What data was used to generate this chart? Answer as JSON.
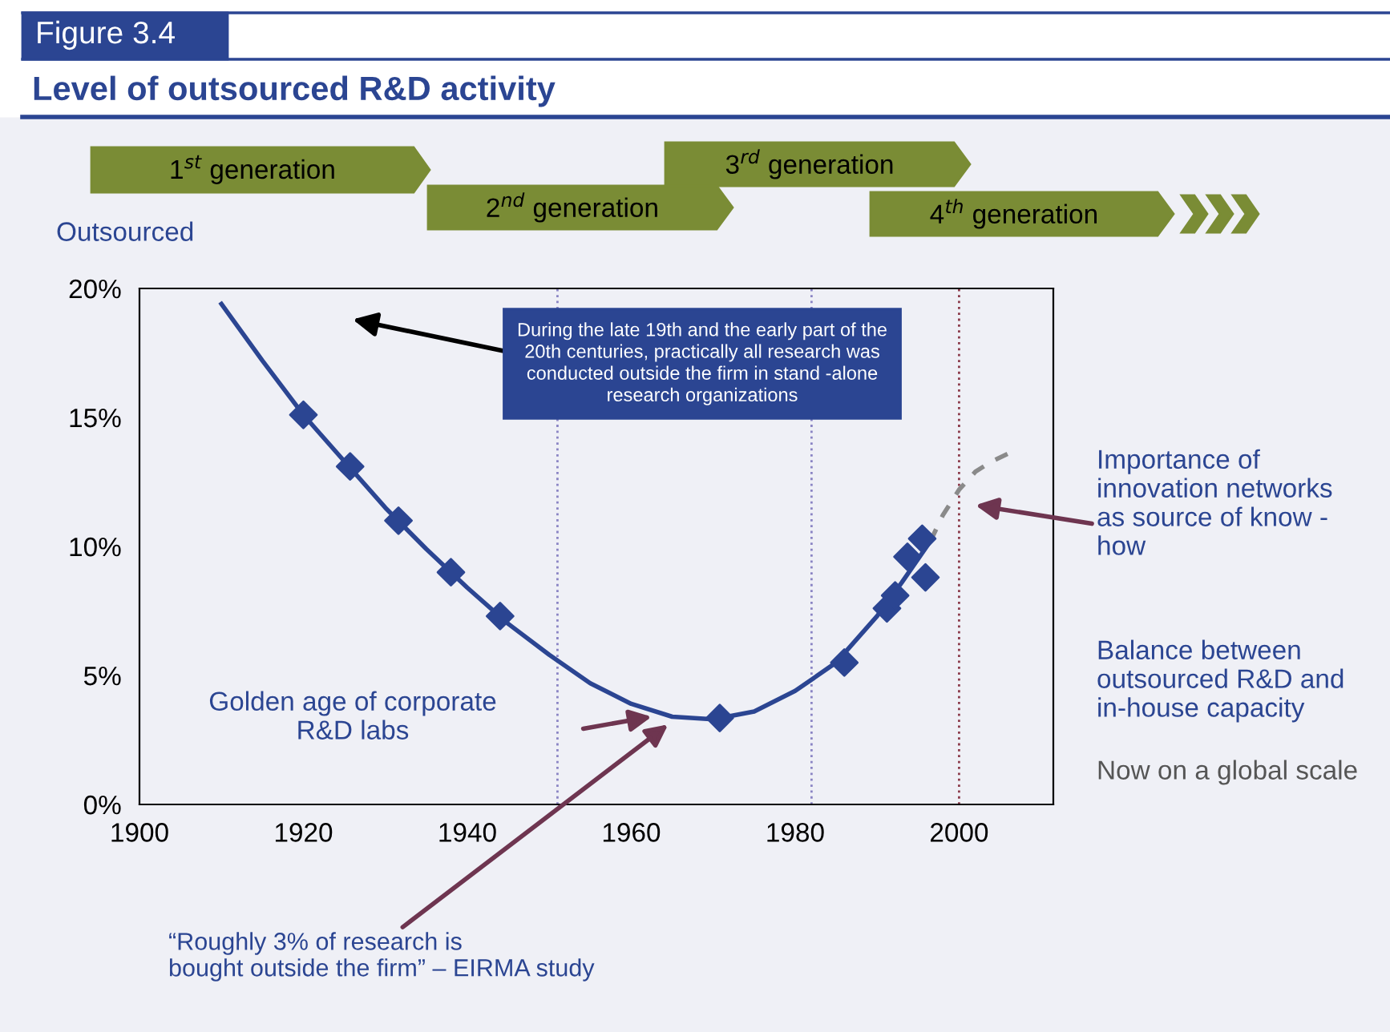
{
  "chart_data": {
    "type": "scatter",
    "title": "Level of outsourced R&D activity",
    "ylabel": "Outsourced",
    "series": [
      {
        "color": "#2b4592",
        "marker": "diamond",
        "x": [
          1920,
          1925.7,
          1931.6,
          1938,
          1944,
          1970.8,
          1986,
          1991.2,
          1992.2,
          1993.7,
          1995.5,
          1995.9
        ],
        "values": [
          15.1,
          13.1,
          11.0,
          9.0,
          7.3,
          3.35,
          5.5,
          7.6,
          8.1,
          9.6,
          10.3,
          8.8
        ]
      },
      {
        "type": "line",
        "color": "#2b4592",
        "line_style": "solid",
        "x": [
          1910,
          1915,
          1920,
          1925,
          1930,
          1935,
          1940,
          1945,
          1950,
          1955,
          1960,
          1965,
          1970,
          1975,
          1980,
          1985,
          1990,
          1993,
          1996.5
        ],
        "values": [
          19.4,
          17.2,
          15.1,
          13.3,
          11.5,
          9.9,
          8.4,
          7.0,
          5.8,
          4.7,
          3.9,
          3.4,
          3.3,
          3.6,
          4.4,
          5.5,
          7.3,
          8.6,
          10.2
        ]
      },
      {
        "type": "line",
        "color": "#8a8a8a",
        "line_style": "dashed",
        "x": [
          1996.5,
          1998,
          2000,
          2002,
          2004,
          2006
        ],
        "values": [
          10.2,
          11.2,
          12.2,
          12.9,
          13.3,
          13.6
        ]
      }
    ],
    "xlim": [
      1900,
      2011.5
    ],
    "xticks": [
      1900,
      1920,
      1940,
      1960,
      1980,
      2000
    ],
    "ylim": [
      0,
      20
    ],
    "yticks": [
      {
        "value": 0,
        "label": "0%"
      },
      {
        "value": 5,
        "label": "5%"
      },
      {
        "value": 10,
        "label": "10%"
      },
      {
        "value": 15,
        "label": "15%"
      },
      {
        "value": 20,
        "label": "20%"
      }
    ],
    "ref_lines": [
      {
        "axis": "x",
        "value": 1951,
        "color": "#8a84c4",
        "line_style": "dotted"
      },
      {
        "axis": "x",
        "value": 1982,
        "color": "#8a84c4",
        "line_style": "dotted"
      },
      {
        "axis": "x",
        "value": 2000,
        "color": "#8b3a4a",
        "line_style": "dotted"
      }
    ],
    "grid": false,
    "legend": false,
    "annotations": [
      "Figure 3.4",
      "During the late 19th and the early part of the\n20th centuries, practically all research was\nconducted outside the firm in stand -alone\nresearch organizations",
      "Golden age of corporate\nR&D labs",
      "“Roughly 3% of research is\nbought outside the firm” – EIRMA study",
      "Importance of\ninnovation networks\nas source of know -\nhow",
      "Balance between\noutsourced R&D and\nin-house capacity",
      "Now on a global scale",
      "1$^{st}$ generation",
      "2$^{nd}$ generation",
      "3$^{rd}$ generation",
      "4$^{th}$ generation"
    ]
  }
}
